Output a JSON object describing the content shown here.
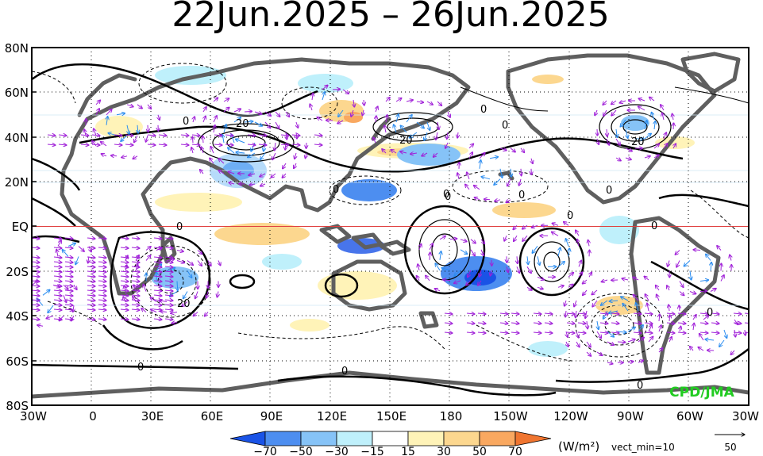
{
  "title": "22Jun.2025 – 26Jun.2025",
  "y_axis": {
    "labels": [
      "80N",
      "60N",
      "40N",
      "20N",
      "EQ",
      "20S",
      "40S",
      "60S",
      "80S"
    ]
  },
  "x_axis": {
    "labels": [
      "30W",
      "0",
      "30E",
      "60E",
      "90E",
      "120E",
      "150E",
      "180",
      "150W",
      "120W",
      "90W",
      "60W",
      "30W"
    ]
  },
  "contour_labels": [
    "0",
    "20",
    "0",
    "20",
    "0",
    "0",
    "0",
    "0",
    "0",
    "0",
    "0",
    "20",
    "0",
    "0",
    "0",
    "0",
    "20",
    "0",
    "0"
  ],
  "credit": "CPD/JMA",
  "colorbar": {
    "labels": [
      "−70",
      "−50",
      "−30",
      "−15",
      "15",
      "30",
      "50",
      "70"
    ],
    "colors": [
      "#1a53e6",
      "#4d8ef0",
      "#86c3f7",
      "#bff0fb",
      "#ffffff",
      "#fff3b8",
      "#fcd78f",
      "#f9a860",
      "#f07530"
    ],
    "units": "(W/m²)",
    "vect_note": "vect_min=10",
    "ref_value": "50"
  },
  "colors": {
    "vector_strong": "#a020d8",
    "vector_weak": "#2a8cf0",
    "land": "#5f5f5f",
    "equator": "#e04040",
    "credit": "#22cc22"
  }
}
